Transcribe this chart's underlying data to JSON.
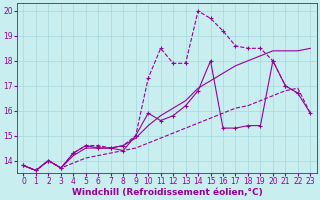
{
  "background_color": "#c8eef0",
  "grid_color": "#a8d8dc",
  "line_color": "#990099",
  "xlabel": "Windchill (Refroidissement éolien,°C)",
  "xlabel_fontsize": 6.5,
  "tick_fontsize": 5.5,
  "ylim": [
    13.5,
    20.3
  ],
  "xlim": [
    -0.5,
    23.5
  ],
  "yticks": [
    14,
    15,
    16,
    17,
    18,
    19,
    20
  ],
  "xticks": [
    0,
    1,
    2,
    3,
    4,
    5,
    6,
    7,
    8,
    9,
    10,
    11,
    12,
    13,
    14,
    15,
    16,
    17,
    18,
    19,
    20,
    21,
    22,
    23
  ],
  "line1_x": [
    0,
    1,
    2,
    3,
    4,
    5,
    6,
    7,
    8,
    9,
    10,
    11,
    12,
    13,
    14,
    15,
    16,
    17,
    18,
    19,
    20,
    21,
    22
  ],
  "line1_y": [
    13.8,
    13.6,
    14.0,
    13.7,
    14.3,
    14.6,
    14.6,
    14.5,
    14.6,
    15.0,
    17.3,
    18.5,
    17.9,
    17.9,
    20.0,
    19.7,
    19.2,
    18.6,
    18.5,
    18.5,
    18.0,
    17.0,
    16.7
  ],
  "line2_x": [
    0,
    1,
    2,
    3,
    4,
    5,
    6,
    7,
    8,
    9,
    10,
    11,
    12,
    13,
    14,
    15,
    16,
    17,
    18,
    19,
    20,
    21,
    22,
    23
  ],
  "line2_y": [
    13.8,
    13.6,
    14.0,
    13.7,
    14.3,
    14.6,
    14.5,
    14.5,
    14.4,
    15.0,
    15.9,
    15.6,
    15.8,
    16.2,
    16.8,
    18.0,
    15.3,
    15.3,
    15.4,
    15.4,
    18.0,
    17.0,
    16.7,
    15.9
  ],
  "line3_x": [
    0,
    1,
    2,
    3,
    4,
    5,
    6,
    7,
    8,
    9,
    10,
    11,
    12,
    13,
    14,
    15,
    16,
    17,
    18,
    19,
    20,
    21,
    22,
    23
  ],
  "line3_y": [
    13.8,
    13.6,
    14.0,
    13.7,
    14.2,
    14.5,
    14.5,
    14.5,
    14.6,
    14.9,
    15.4,
    15.8,
    16.1,
    16.4,
    16.9,
    17.2,
    17.5,
    17.8,
    18.0,
    18.2,
    18.4,
    18.4,
    18.4,
    18.5
  ],
  "line4_x": [
    0,
    1,
    2,
    3,
    4,
    5,
    6,
    7,
    8,
    9,
    10,
    11,
    12,
    13,
    14,
    15,
    16,
    17,
    18,
    19,
    20,
    21,
    22,
    23
  ],
  "line4_y": [
    13.8,
    13.6,
    14.0,
    13.7,
    13.9,
    14.1,
    14.2,
    14.3,
    14.4,
    14.5,
    14.7,
    14.9,
    15.1,
    15.3,
    15.5,
    15.7,
    15.9,
    16.1,
    16.2,
    16.4,
    16.6,
    16.8,
    16.9,
    15.9
  ]
}
